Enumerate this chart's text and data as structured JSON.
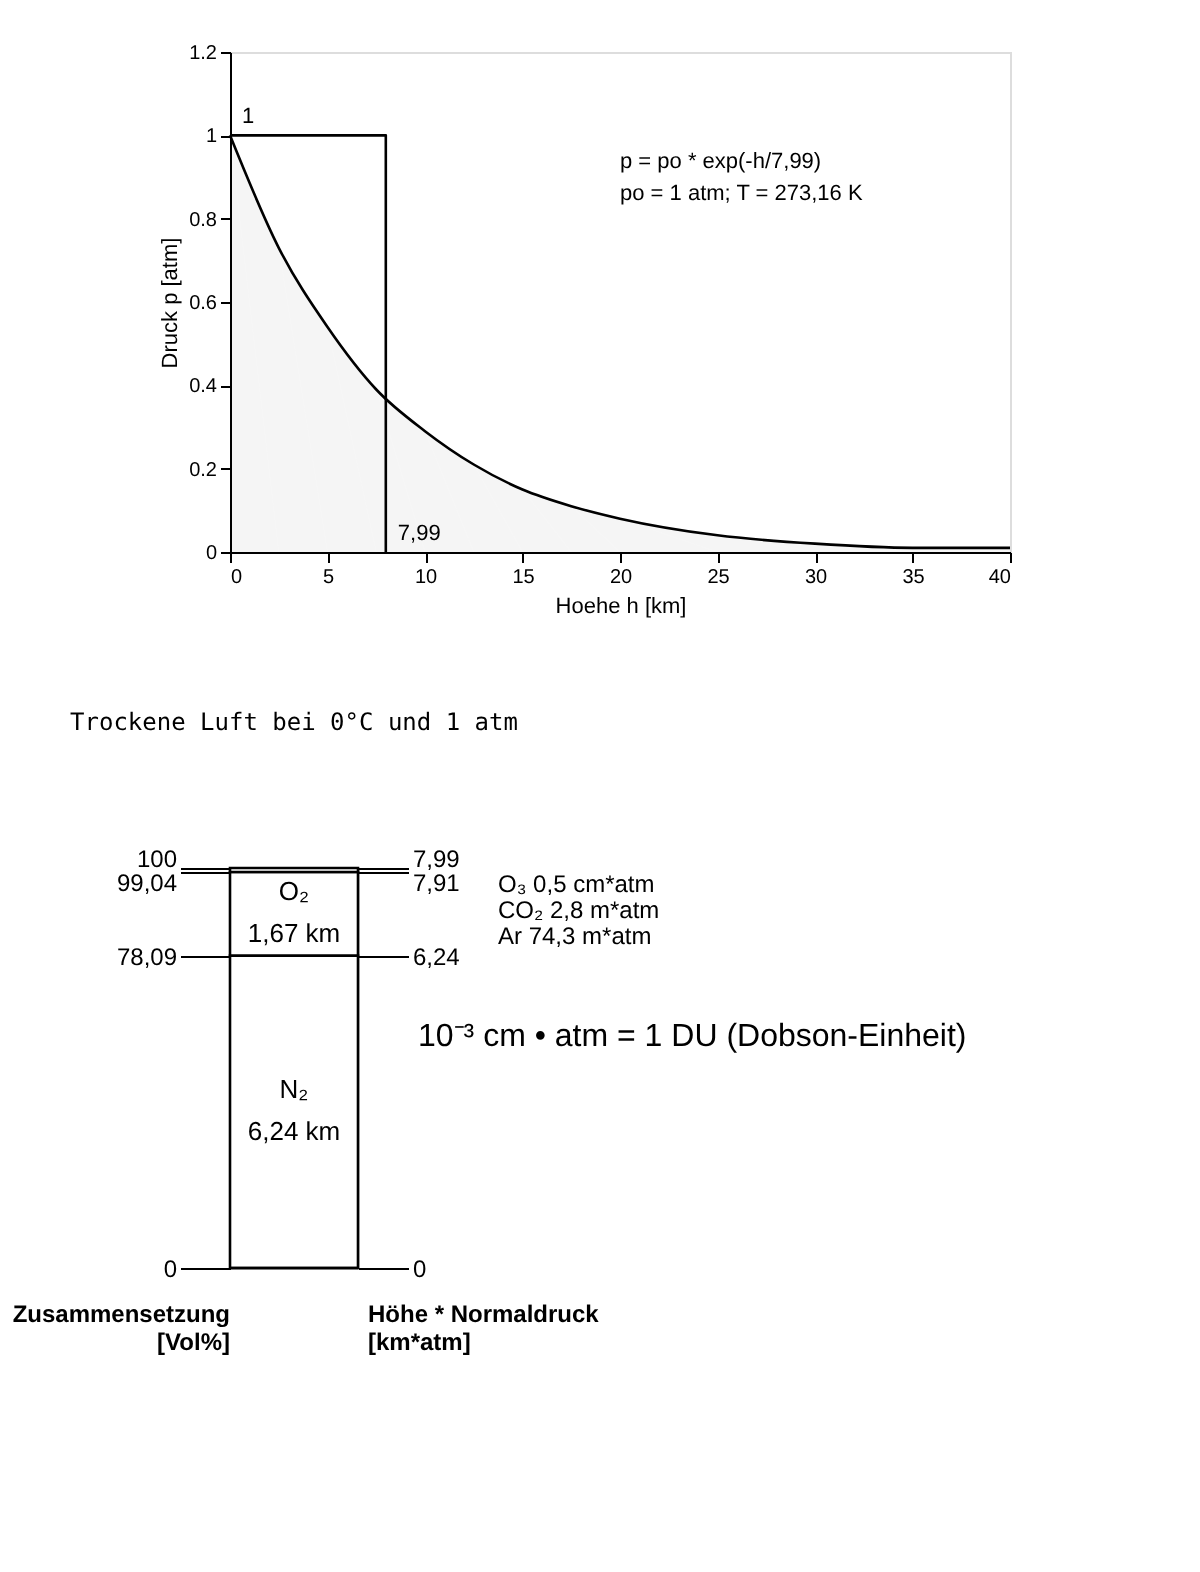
{
  "chart_data": [
    {
      "type": "line",
      "xlabel": "Hoehe h [km]",
      "ylabel": "Druck p [atm]",
      "xlim": [
        0,
        40
      ],
      "xticks": [
        0,
        5,
        10,
        15,
        20,
        25,
        30,
        35,
        40
      ],
      "ylim": [
        0,
        1.2
      ],
      "yticks": [
        0,
        0.2,
        0.4,
        0.6,
        0.8,
        1,
        1.2
      ],
      "grid": false,
      "series": [
        {
          "type": "area",
          "color": "#000000",
          "x": [
            0,
            2.5,
            5,
            7.5,
            10,
            12.5,
            15,
            17.5,
            20,
            25,
            30,
            35,
            40
          ],
          "values": [
            1,
            0.73,
            0.54,
            0.39,
            0.29,
            0.21,
            0.15,
            0.11,
            0.08,
            0.04,
            0.02,
            0.01,
            0.01
          ]
        },
        {
          "type": "line",
          "color": "#000000",
          "x": [
            0,
            7.99,
            7.99
          ],
          "values": [
            1,
            1,
            0
          ]
        }
      ],
      "annotations": [
        {
          "text": "1",
          "x": 0,
          "y": 1
        },
        {
          "text": "7,99",
          "x": 7.99,
          "y": 0
        },
        "p  = po * exp(-h/7,99)",
        "po = 1 atm; T = 273,16 K"
      ]
    },
    {
      "type": "bar",
      "stacked": true,
      "title": "Trockene Luft bei 0°C und 1 atm",
      "categories": [
        null
      ],
      "ylabel": "Zusammensetzung [Vol%]",
      "y2label": "Höhe * Normaldruck [km*atm]",
      "ylim": [
        0,
        100
      ],
      "yticks": [
        0,
        {
          "value": 78.09,
          "label": "78,09"
        },
        {
          "value": 99.04,
          "label": "99,04"
        },
        100
      ],
      "y2lim": [
        0,
        7.99
      ],
      "y2ticks": [
        0,
        {
          "value": 6.24,
          "label": "6,24"
        },
        {
          "value": 7.91,
          "label": "7,91"
        },
        {
          "value": 7.99,
          "label": "7,99"
        }
      ],
      "tick_labels": "y",
      "grid": false,
      "series": [
        {
          "name": "N₂",
          "color": "#ffffff",
          "axis": "y2",
          "values": [
            6.24
          ],
          "value_labels": [
            "6,24 km"
          ]
        },
        {
          "name": "O₂",
          "color": "#ffffff",
          "axis": "y2",
          "values": [
            1.67
          ],
          "value_labels": [
            "1,67 km"
          ]
        },
        {
          "color": "#ffffff",
          "axis": "y2",
          "values": [
            0.08
          ]
        }
      ],
      "annotations": [
        "O₃     0,5  cm*atm",
        "CO₂   2,8  m*atm",
        "Ar   74,3  m*atm",
        "10⁻³ cm • atm = 1 DU (Dobson-Einheit)"
      ]
    }
  ]
}
